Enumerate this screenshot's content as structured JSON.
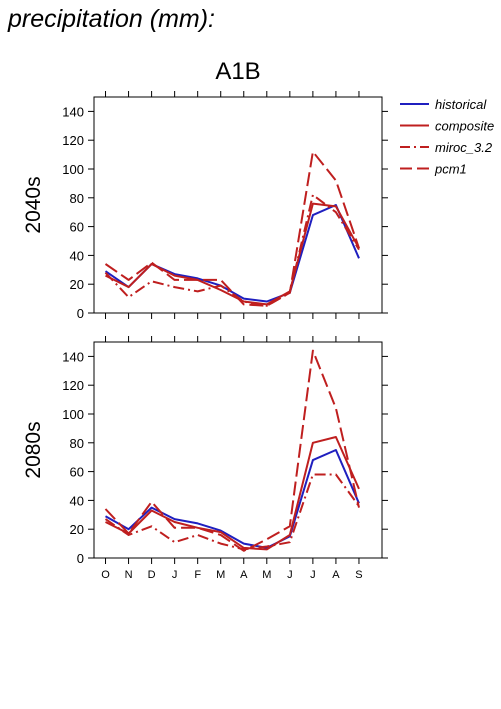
{
  "figure": {
    "title": "precipitation (mm):",
    "scenario": "A1B"
  },
  "legend": {
    "placement": "top-right",
    "entries": [
      {
        "name": "historical",
        "color": "#1f1fbf",
        "style": "solid"
      },
      {
        "name": "composite",
        "color": "#bf1f1f",
        "style": "solid"
      },
      {
        "name": "miroc_3.2",
        "color": "#bf1f1f",
        "style": "dashdot"
      },
      {
        "name": "pcm1",
        "color": "#bf1f1f",
        "style": "dashed"
      }
    ]
  },
  "chart_data": [
    {
      "type": "line",
      "ylabel": "2040s",
      "categories": [
        "O",
        "N",
        "D",
        "J",
        "F",
        "M",
        "A",
        "M",
        "J",
        "J",
        "A",
        "S"
      ],
      "ylim": [
        0,
        150
      ],
      "yticks": [
        0,
        20,
        40,
        60,
        80,
        100,
        120,
        140
      ],
      "series": [
        {
          "name": "historical",
          "values": [
            29,
            18,
            34,
            27,
            24,
            19,
            10,
            8,
            14,
            68,
            75,
            38
          ]
        },
        {
          "name": "composite",
          "values": [
            26,
            18,
            34,
            26,
            23,
            16,
            8,
            6,
            15,
            76,
            74,
            45
          ]
        },
        {
          "name": "miroc_3.2",
          "values": [
            28,
            11,
            22,
            18,
            15,
            19,
            8,
            5,
            14,
            82,
            70,
            44
          ]
        },
        {
          "name": "pcm1",
          "values": [
            34,
            23,
            35,
            23,
            23,
            23,
            6,
            5,
            14,
            112,
            92,
            45
          ]
        }
      ]
    },
    {
      "type": "line",
      "ylabel": "2080s",
      "categories": [
        "O",
        "N",
        "D",
        "J",
        "F",
        "M",
        "A",
        "M",
        "J",
        "J",
        "A",
        "S"
      ],
      "ylim": [
        0,
        150
      ],
      "yticks": [
        0,
        20,
        40,
        60,
        80,
        100,
        120,
        140
      ],
      "series": [
        {
          "name": "historical",
          "values": [
            29,
            20,
            35,
            27,
            24,
            19,
            10,
            7,
            15,
            68,
            75,
            38
          ]
        },
        {
          "name": "composite",
          "values": [
            25,
            17,
            33,
            25,
            21,
            18,
            7,
            6,
            16,
            80,
            84,
            48
          ]
        },
        {
          "name": "miroc_3.2",
          "values": [
            27,
            16,
            22,
            11,
            16,
            10,
            6,
            8,
            11,
            58,
            58,
            36
          ]
        },
        {
          "name": "pcm1",
          "values": [
            34,
            17,
            39,
            21,
            21,
            16,
            5,
            13,
            22,
            144,
            104,
            35
          ]
        }
      ]
    }
  ]
}
